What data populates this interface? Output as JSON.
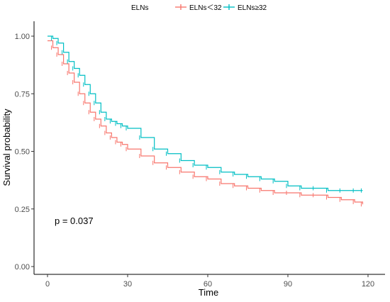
{
  "chart_data": {
    "type": "line",
    "subtype": "kaplan-meier survival curve",
    "xlabel": "Time",
    "ylabel": "Survival probability",
    "xlim": [
      0,
      120
    ],
    "ylim": [
      0,
      1
    ],
    "x_ticks": [
      "0",
      "30",
      "60",
      "90",
      "120"
    ],
    "y_ticks": [
      "0.00",
      "0.25",
      "0.50",
      "0.75",
      "1.00"
    ],
    "x_tick_values": [
      0,
      30,
      60,
      90,
      120
    ],
    "y_tick_values": [
      0,
      0.25,
      0.5,
      0.75,
      1.0
    ],
    "grid": false,
    "legend": {
      "title": "ELNs",
      "position": "top",
      "entries": [
        "ELNs＜32",
        "ELNs≥32"
      ]
    },
    "annotation": "p = 0.037",
    "series": [
      {
        "name": "ELNs＜32",
        "color": "#F8766D",
        "x": [
          0,
          2,
          4,
          6,
          8,
          10,
          12,
          14,
          16,
          18,
          20,
          22,
          24,
          26,
          28,
          30,
          35,
          40,
          45,
          50,
          55,
          60,
          65,
          70,
          75,
          80,
          85,
          90,
          95,
          100,
          105,
          110,
          115,
          118
        ],
        "y": [
          0.98,
          0.95,
          0.92,
          0.88,
          0.84,
          0.8,
          0.75,
          0.71,
          0.67,
          0.64,
          0.61,
          0.58,
          0.56,
          0.54,
          0.53,
          0.51,
          0.48,
          0.45,
          0.43,
          0.41,
          0.39,
          0.38,
          0.36,
          0.35,
          0.34,
          0.33,
          0.32,
          0.32,
          0.31,
          0.31,
          0.3,
          0.29,
          0.28,
          0.27
        ]
      },
      {
        "name": "ELNs≥32",
        "color": "#00BFC4",
        "x": [
          0,
          2,
          4,
          6,
          8,
          10,
          12,
          14,
          16,
          18,
          20,
          22,
          24,
          26,
          28,
          30,
          35,
          40,
          45,
          50,
          55,
          60,
          65,
          70,
          75,
          80,
          85,
          90,
          95,
          100,
          105,
          110,
          115,
          118
        ],
        "y": [
          1.0,
          0.99,
          0.97,
          0.93,
          0.89,
          0.86,
          0.83,
          0.79,
          0.75,
          0.71,
          0.67,
          0.64,
          0.63,
          0.62,
          0.61,
          0.6,
          0.56,
          0.51,
          0.49,
          0.46,
          0.44,
          0.43,
          0.41,
          0.4,
          0.39,
          0.38,
          0.37,
          0.35,
          0.34,
          0.34,
          0.33,
          0.33,
          0.33,
          0.33
        ]
      }
    ]
  }
}
